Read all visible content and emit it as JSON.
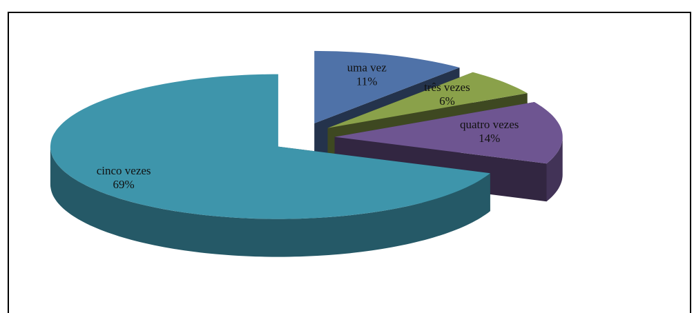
{
  "chart_data": {
    "type": "pie",
    "categories": [
      "uma vez",
      "três vezes",
      "quatro vezes",
      "cinco vezes"
    ],
    "values": [
      11,
      6,
      14,
      69
    ],
    "value_labels": [
      "11%",
      "6%",
      "14%",
      "69%"
    ],
    "colors": [
      "#4f72a8",
      "#8aa14a",
      "#6e5591",
      "#3e95ab"
    ]
  }
}
